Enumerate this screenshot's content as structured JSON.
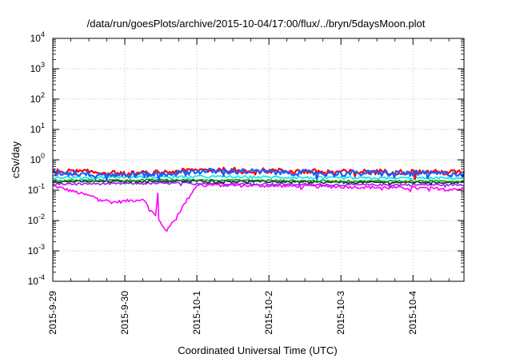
{
  "chart_data": {
    "type": "line",
    "title": "/data/run/goesPlots/archive/2015-10-04/17:00/flux/../bryn/5daysMoon.plot",
    "xlabel": "Coordinated Universal Time (UTC)",
    "ylabel": "cSv/day",
    "xlim": [
      "2015-09-29T00:00",
      "2015-10-04T17:00"
    ],
    "ylim": [
      0.0001,
      10000
    ],
    "yscale": "log",
    "grid": true,
    "legend": "none",
    "x_ticks": [
      "2015-9-29",
      "2015-9-30",
      "2015-10-1",
      "2015-10-2",
      "2015-10-3",
      "2015-10-4"
    ],
    "y_ticks": [
      {
        "base": "10",
        "exp": "-4"
      },
      {
        "base": "10",
        "exp": "-3"
      },
      {
        "base": "10",
        "exp": "-2"
      },
      {
        "base": "10",
        "exp": "-1"
      },
      {
        "base": "10",
        "exp": "0"
      },
      {
        "base": "10",
        "exp": "1"
      },
      {
        "base": "10",
        "exp": "2"
      },
      {
        "base": "10",
        "exp": "3"
      },
      {
        "base": "10",
        "exp": "4"
      }
    ],
    "series": [
      {
        "color": "#ff0000",
        "level": 0.42,
        "spread": 0.2,
        "values": [
          {
            "x": "2015-09-29T00:00",
            "y": 0.42
          },
          {
            "x": "2015-09-29T12:00",
            "y": 0.4
          },
          {
            "x": "2015-09-30T00:00",
            "y": 0.35
          },
          {
            "x": "2015-09-30T12:00",
            "y": 0.38
          },
          {
            "x": "2015-10-01T00:00",
            "y": 0.46
          },
          {
            "x": "2015-10-01T12:00",
            "y": 0.47
          },
          {
            "x": "2015-10-02T00:00",
            "y": 0.44
          },
          {
            "x": "2015-10-02T12:00",
            "y": 0.42
          },
          {
            "x": "2015-10-03T00:00",
            "y": 0.4
          },
          {
            "x": "2015-10-03T12:00",
            "y": 0.41
          },
          {
            "x": "2015-10-04T00:00",
            "y": 0.4
          },
          {
            "x": "2015-10-04T17:00",
            "y": 0.39
          }
        ]
      },
      {
        "color": "#1a5fff",
        "level": 0.38,
        "spread": 0.22,
        "values": [
          {
            "x": "2015-09-29T00:00",
            "y": 0.38
          },
          {
            "x": "2015-09-29T12:00",
            "y": 0.36
          },
          {
            "x": "2015-09-30T00:00",
            "y": 0.32
          },
          {
            "x": "2015-09-30T12:00",
            "y": 0.34
          },
          {
            "x": "2015-10-01T00:00",
            "y": 0.42
          },
          {
            "x": "2015-10-01T12:00",
            "y": 0.43
          },
          {
            "x": "2015-10-02T00:00",
            "y": 0.4
          },
          {
            "x": "2015-10-02T12:00",
            "y": 0.38
          },
          {
            "x": "2015-10-03T00:00",
            "y": 0.36
          },
          {
            "x": "2015-10-03T12:00",
            "y": 0.37
          },
          {
            "x": "2015-10-04T00:00",
            "y": 0.36
          },
          {
            "x": "2015-10-04T17:00",
            "y": 0.35
          }
        ]
      },
      {
        "color": "#00e5ee",
        "level": 0.26,
        "spread": 0.1,
        "values": [
          {
            "x": "2015-09-29T00:00",
            "y": 0.26
          },
          {
            "x": "2015-10-01T00:00",
            "y": 0.28
          },
          {
            "x": "2015-10-02T00:00",
            "y": 0.27
          },
          {
            "x": "2015-10-03T00:00",
            "y": 0.25
          },
          {
            "x": "2015-10-04T17:00",
            "y": 0.25
          }
        ]
      },
      {
        "color": "#00a000",
        "level": 0.21,
        "spread": 0.06,
        "values": [
          {
            "x": "2015-09-29T00:00",
            "y": 0.21
          },
          {
            "x": "2015-10-01T00:00",
            "y": 0.22
          },
          {
            "x": "2015-10-02T00:00",
            "y": 0.21
          },
          {
            "x": "2015-10-03T00:00",
            "y": 0.2
          },
          {
            "x": "2015-10-04T17:00",
            "y": 0.2
          }
        ]
      },
      {
        "color": "#1e1e3c",
        "level": 0.19,
        "spread": 0.07,
        "values": [
          {
            "x": "2015-09-29T00:00",
            "y": 0.19
          },
          {
            "x": "2015-10-01T00:00",
            "y": 0.2
          },
          {
            "x": "2015-10-02T00:00",
            "y": 0.19
          },
          {
            "x": "2015-10-03T00:00",
            "y": 0.18
          },
          {
            "x": "2015-10-04T17:00",
            "y": 0.18
          }
        ]
      },
      {
        "color": "#a020f0",
        "level": 0.16,
        "spread": 0.08,
        "values": [
          {
            "x": "2015-09-29T00:00",
            "y": 0.16
          },
          {
            "x": "2015-10-01T00:00",
            "y": 0.17
          },
          {
            "x": "2015-10-02T00:00",
            "y": 0.16
          },
          {
            "x": "2015-10-03T00:00",
            "y": 0.15
          },
          {
            "x": "2015-10-04T17:00",
            "y": 0.15
          }
        ]
      },
      {
        "color": "#ff00ff",
        "level": 0.14,
        "spread": 0.12,
        "values": [
          {
            "x": "2015-09-29T00:00",
            "y": 0.14
          },
          {
            "x": "2015-09-29T20:00",
            "y": 0.04
          },
          {
            "x": "2015-09-30T06:00",
            "y": 0.05
          },
          {
            "x": "2015-09-30T14:00",
            "y": 0.0045
          },
          {
            "x": "2015-10-01T00:00",
            "y": 0.15
          },
          {
            "x": "2015-10-02T00:00",
            "y": 0.14
          },
          {
            "x": "2015-10-03T00:00",
            "y": 0.13
          },
          {
            "x": "2015-10-04T17:00",
            "y": 0.11
          }
        ]
      }
    ]
  }
}
